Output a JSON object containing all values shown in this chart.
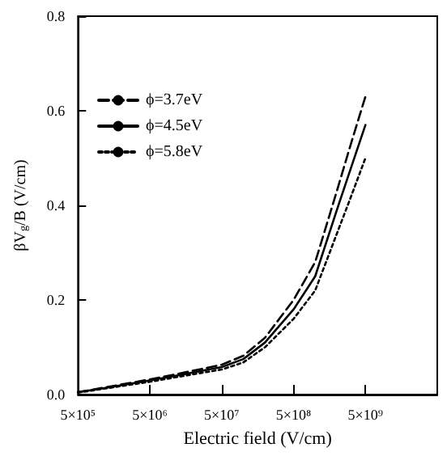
{
  "chart_data": {
    "type": "line",
    "xlabel": "Electric field (V/cm)",
    "ylabel": "βV$_{g}$/B (V/cm)",
    "log": "x",
    "x": [
      500000,
      1000000,
      5000000,
      10000000,
      50000000,
      100000000,
      200000000,
      500000000,
      1000000000,
      2000000000,
      3000000000,
      5000000000
    ],
    "series": [
      {
        "name": "ϕ=3.7eV",
        "color": "#000000",
        "line_style": "dashed",
        "values": [
          0.005,
          0.013,
          0.032,
          0.041,
          0.063,
          0.082,
          0.12,
          0.2,
          0.28,
          0.43,
          0.52,
          0.63
        ]
      },
      {
        "name": "ϕ=4.5eV",
        "color": "#000000",
        "line_style": "solid",
        "values": [
          0.005,
          0.012,
          0.03,
          0.038,
          0.058,
          0.075,
          0.11,
          0.18,
          0.25,
          0.39,
          0.47,
          0.57
        ]
      },
      {
        "name": "ϕ=5.8eV",
        "color": "#000000",
        "line_style": "dotted",
        "values": [
          0.004,
          0.011,
          0.027,
          0.035,
          0.053,
          0.068,
          0.1,
          0.16,
          0.22,
          0.34,
          0.41,
          0.5
        ]
      }
    ],
    "xlim": [
      500000,
      50000000000
    ],
    "xticks": [
      {
        "value": 500000,
        "label": "5×10⁵"
      },
      {
        "value": 5000000,
        "label": "5×10⁶"
      },
      {
        "value": 50000000,
        "label": "5×10⁷"
      },
      {
        "value": 500000000,
        "label": "5×10⁸"
      },
      {
        "value": 5000000000,
        "label": "5×10⁹"
      }
    ],
    "ylim": [
      0,
      0.8
    ],
    "yticks": [
      {
        "value": 0,
        "label": "0.0"
      },
      {
        "value": 0.2,
        "label": "0.2"
      },
      {
        "value": 0.4,
        "label": "0.4"
      },
      {
        "value": 0.6,
        "label": "0.6"
      },
      {
        "value": 0.8,
        "label": "0.8"
      }
    ],
    "grid": false,
    "legend": "top left",
    "marker": "none"
  }
}
